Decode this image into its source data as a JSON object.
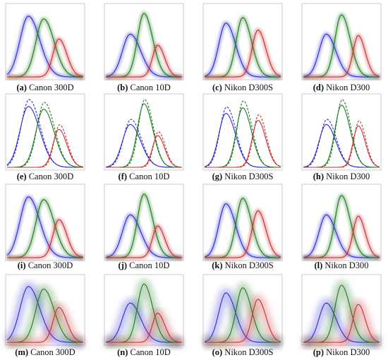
{
  "figure": {
    "panels": [
      {
        "letter": "(a)",
        "label": "Canon 300D"
      },
      {
        "letter": "(b)",
        "label": "Canon 10D"
      },
      {
        "letter": "(c)",
        "label": "Nikon D300S"
      },
      {
        "letter": "(d)",
        "label": "Nikon D300"
      },
      {
        "letter": "(e)",
        "label": "Canon 300D"
      },
      {
        "letter": "(f)",
        "label": "Canon 10D"
      },
      {
        "letter": "(g)",
        "label": "Nikon D300S"
      },
      {
        "letter": "(h)",
        "label": "Nikon D300"
      },
      {
        "letter": "(i)",
        "label": "Canon 300D"
      },
      {
        "letter": "(j)",
        "label": "Canon 10D"
      },
      {
        "letter": "(k)",
        "label": "Nikon D300S"
      },
      {
        "letter": "(l)",
        "label": "Nikon D300"
      },
      {
        "letter": "(m)",
        "label": "Canon 300D"
      },
      {
        "letter": "(n)",
        "label": "Canon 10D"
      },
      {
        "letter": "(o)",
        "label": "Nikon D300S"
      },
      {
        "letter": "(p)",
        "label": "Nikon D300"
      }
    ],
    "colors": {
      "blue": "#2b2bd6",
      "green": "#1e7a1e",
      "red": "#c83030",
      "frame": "#bfbfbf"
    }
  },
  "chart_data": {
    "type": "line",
    "layout": "4x4 grid of small multiples, no axis labels or tick labels",
    "grid": false,
    "cameras": {
      "Canon 300D": {
        "blue": {
          "peak_x": 0.28,
          "peak_y": 0.88,
          "width": 0.13
        },
        "green": {
          "peak_x": 0.48,
          "peak_y": 0.84,
          "width": 0.12
        },
        "red": {
          "peak_x": 0.68,
          "peak_y": 0.55,
          "width": 0.09
        }
      },
      "Canon 10D": {
        "blue": {
          "peak_x": 0.32,
          "peak_y": 0.62,
          "width": 0.12
        },
        "green": {
          "peak_x": 0.5,
          "peak_y": 0.92,
          "width": 0.1
        },
        "red": {
          "peak_x": 0.68,
          "peak_y": 0.46,
          "width": 0.08
        }
      },
      "Nikon D300S": {
        "blue": {
          "peak_x": 0.28,
          "peak_y": 0.78,
          "width": 0.11
        },
        "green": {
          "peak_x": 0.5,
          "peak_y": 0.86,
          "width": 0.1
        },
        "red": {
          "peak_x": 0.7,
          "peak_y": 0.68,
          "width": 0.09
        }
      },
      "Nikon D300": {
        "blue": {
          "peak_x": 0.3,
          "peak_y": 0.62,
          "width": 0.11
        },
        "green": {
          "peak_x": 0.5,
          "peak_y": 0.9,
          "width": 0.1
        },
        "red": {
          "peak_x": 0.72,
          "peak_y": 0.6,
          "width": 0.08
        }
      }
    },
    "rows": [
      {
        "style": "estimated band with measured curves",
        "panels": [
          "a",
          "b",
          "c",
          "d"
        ]
      },
      {
        "style": "solid and dashed curves",
        "panels": [
          "e",
          "f",
          "g",
          "h"
        ]
      },
      {
        "style": "estimated band with measured curves",
        "panels": [
          "i",
          "j",
          "k",
          "l"
        ]
      },
      {
        "style": "wide noisy band with measured curves",
        "panels": [
          "m",
          "n",
          "o",
          "p"
        ]
      }
    ]
  }
}
